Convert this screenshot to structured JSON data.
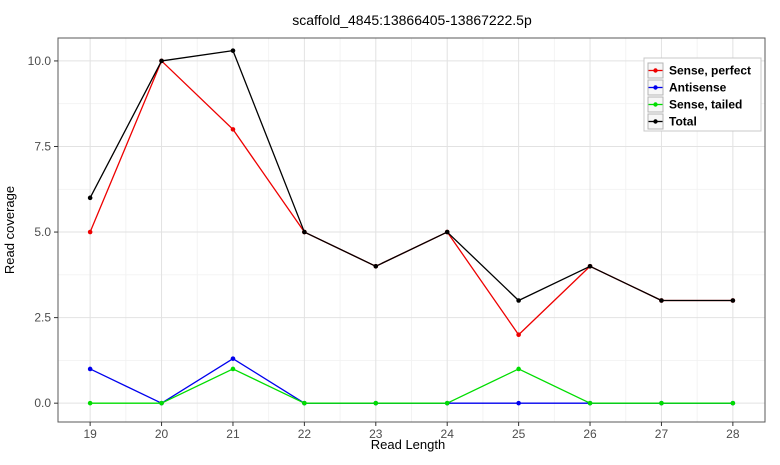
{
  "chart_data": {
    "type": "line",
    "title": "scaffold_4845:13866405-13867222.5p",
    "xlabel": "Read Length",
    "ylabel": "Read coverage",
    "x": [
      19,
      20,
      21,
      22,
      23,
      24,
      25,
      26,
      27,
      28
    ],
    "xtick_labels": [
      "19",
      "20",
      "21",
      "22",
      "23",
      "24",
      "25",
      "26",
      "27",
      "28"
    ],
    "ytick_values": [
      0,
      2.5,
      5,
      7.5,
      10
    ],
    "ytick_labels": [
      "0.0",
      "2.5",
      "5.0",
      "7.5",
      "10.0"
    ],
    "xlim": [
      18.55,
      28.45
    ],
    "ylim": [
      -0.55,
      10.67
    ],
    "grid": {
      "major": true,
      "minor": true,
      "major_color": "#e2e2e2",
      "minor_color": "#f2f2f2"
    },
    "panel": {
      "background": "#ffffff",
      "border_color": "#5a5a5a"
    },
    "legend": {
      "position": "inside-top-right",
      "border_color": "#c8c8c8",
      "key_fill": "#f7f7f7",
      "key_border": "#b4b4b4",
      "entries": [
        "Sense, perfect",
        "Antisense",
        "Sense, tailed",
        "Total"
      ]
    },
    "series": [
      {
        "name": "Sense, perfect",
        "color": "#ee0000",
        "values": [
          5,
          10,
          8,
          5,
          4,
          5,
          2,
          4,
          3,
          3
        ]
      },
      {
        "name": "Antisense",
        "color": "#0000ee",
        "values": [
          1,
          0,
          1.3,
          0,
          0,
          0,
          0,
          0,
          0,
          0
        ]
      },
      {
        "name": "Sense, tailed",
        "color": "#00dd00",
        "values": [
          0,
          0,
          1,
          0,
          0,
          0,
          1,
          0,
          0,
          0
        ]
      },
      {
        "name": "Total",
        "color": "#000000",
        "values": [
          6,
          10,
          10.3,
          5,
          4,
          5,
          3,
          4,
          3,
          3
        ]
      }
    ]
  }
}
